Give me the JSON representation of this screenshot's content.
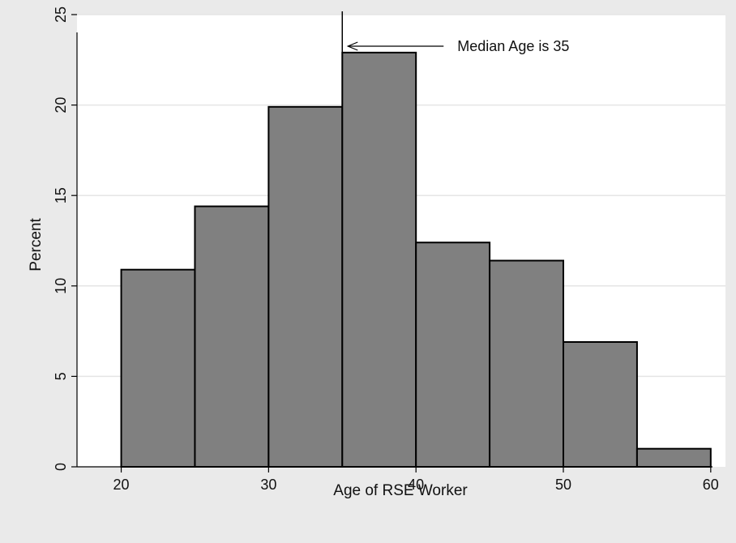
{
  "chart_data": {
    "type": "bar",
    "title": "",
    "xlabel": "Age of RSE Worker",
    "ylabel": "Percent",
    "bin_edges": [
      20,
      25,
      30,
      35,
      40,
      45,
      50,
      55,
      60
    ],
    "values": [
      10.9,
      14.4,
      19.9,
      22.9,
      12.4,
      11.4,
      6.9,
      1.0
    ],
    "xlim": [
      17,
      61
    ],
    "ylim": [
      0,
      25
    ],
    "x_ticks": [
      20,
      30,
      40,
      50,
      60
    ],
    "y_ticks": [
      0,
      5,
      10,
      15,
      20,
      25
    ],
    "grid": true,
    "legend": "none",
    "annotation": {
      "text": "Median Age is 35",
      "x": 35
    },
    "colors": {
      "background": "#eaeaea",
      "plot_area": "#ffffff",
      "bar_fill": "#808080",
      "bar_edge": "#000000",
      "grid": "#e5e5e5"
    }
  }
}
